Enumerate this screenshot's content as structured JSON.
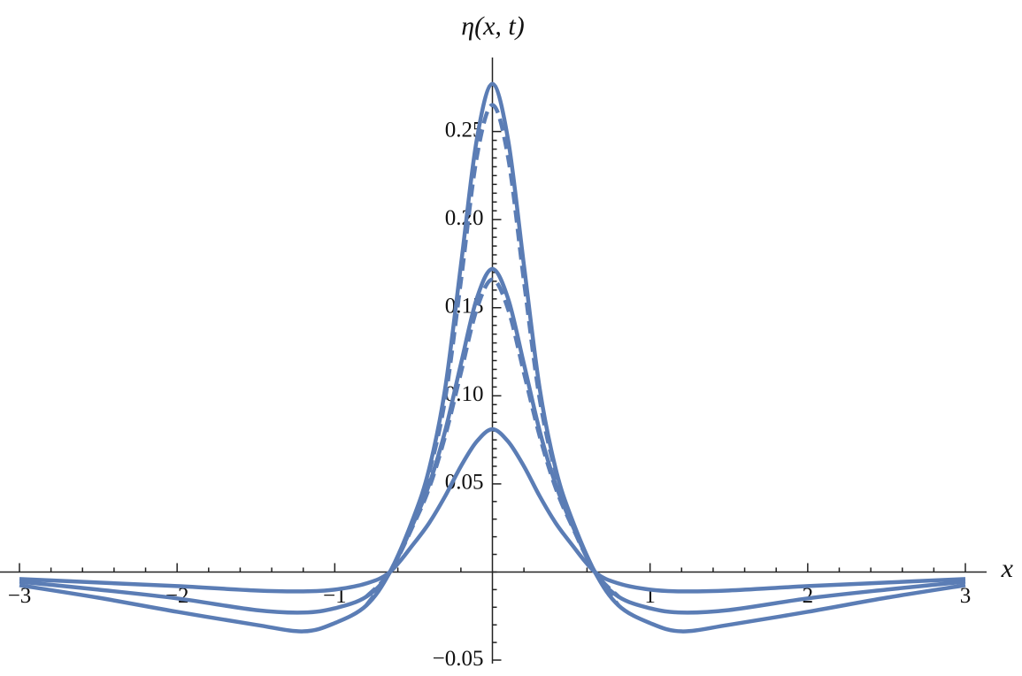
{
  "chart_data": {
    "type": "line",
    "xlabel": "x",
    "ylabel": "η(x, t)",
    "x": [
      -3,
      -2.5,
      -2,
      -1.5,
      -1.2,
      -1,
      -0.8,
      -0.65,
      -0.5,
      -0.4,
      -0.3,
      -0.2,
      -0.1,
      0,
      0.1,
      0.2,
      0.3,
      0.4,
      0.5,
      0.65,
      0.8,
      1,
      1.2,
      1.5,
      2,
      2.5,
      3
    ],
    "series": [
      {
        "color": "#5b7db5",
        "dash": false,
        "values": [
          -0.0075,
          -0.0146,
          -0.0226,
          -0.03,
          -0.0337,
          -0.029,
          -0.019,
          0,
          0.031,
          0.059,
          0.104,
          0.174,
          0.245,
          0.277,
          0.245,
          0.174,
          0.104,
          0.059,
          0.031,
          0,
          -0.019,
          -0.029,
          -0.0337,
          -0.03,
          -0.0226,
          -0.0146,
          -0.0075
        ]
      },
      {
        "color": "#5b7db5",
        "dash": false,
        "values": [
          -0.0055,
          -0.01,
          -0.015,
          -0.0216,
          -0.023,
          -0.0206,
          -0.014,
          0,
          0.028,
          0.05,
          0.08,
          0.118,
          0.155,
          0.172,
          0.155,
          0.118,
          0.08,
          0.05,
          0.028,
          0,
          -0.014,
          -0.0206,
          -0.023,
          -0.0216,
          -0.015,
          -0.01,
          -0.0055
        ]
      },
      {
        "color": "#5b7db5",
        "dash": false,
        "values": [
          -0.004,
          -0.006,
          -0.008,
          -0.0105,
          -0.011,
          -0.01,
          -0.0065,
          0,
          0.016,
          0.028,
          0.043,
          0.06,
          0.074,
          0.081,
          0.074,
          0.06,
          0.043,
          0.028,
          0.016,
          0,
          -0.0065,
          -0.01,
          -0.011,
          -0.0105,
          -0.008,
          -0.006,
          -0.004
        ]
      },
      {
        "color": "#5b7db5",
        "dash": true,
        "values": [
          null,
          null,
          null,
          null,
          null,
          null,
          -0.019,
          0,
          0.03,
          0.057,
          0.098,
          0.165,
          0.235,
          0.265,
          0.235,
          0.165,
          0.098,
          0.057,
          0.03,
          0,
          -0.019,
          null,
          null,
          null,
          null,
          null,
          null
        ]
      },
      {
        "color": "#5b7db5",
        "dash": true,
        "values": [
          null,
          null,
          null,
          null,
          null,
          null,
          -0.014,
          0,
          0.027,
          0.048,
          0.077,
          0.113,
          0.149,
          0.166,
          0.149,
          0.113,
          0.077,
          0.048,
          0.027,
          0,
          -0.014,
          null,
          null,
          null,
          null,
          null,
          null
        ]
      }
    ],
    "xlim": [
      -3,
      3
    ],
    "ylim": [
      -0.052,
      0.292
    ],
    "xticks": [
      {
        "value": -3,
        "label": "−3"
      },
      {
        "value": -2,
        "label": "−2"
      },
      {
        "value": -1,
        "label": "−1"
      },
      1,
      2,
      3
    ],
    "yticks": [
      {
        "value": -0.05,
        "label": "−0.05"
      },
      0.05,
      {
        "value": 0.1,
        "label": "0.10"
      },
      0.15,
      {
        "value": 0.2,
        "label": "0.20"
      },
      0.25
    ]
  }
}
